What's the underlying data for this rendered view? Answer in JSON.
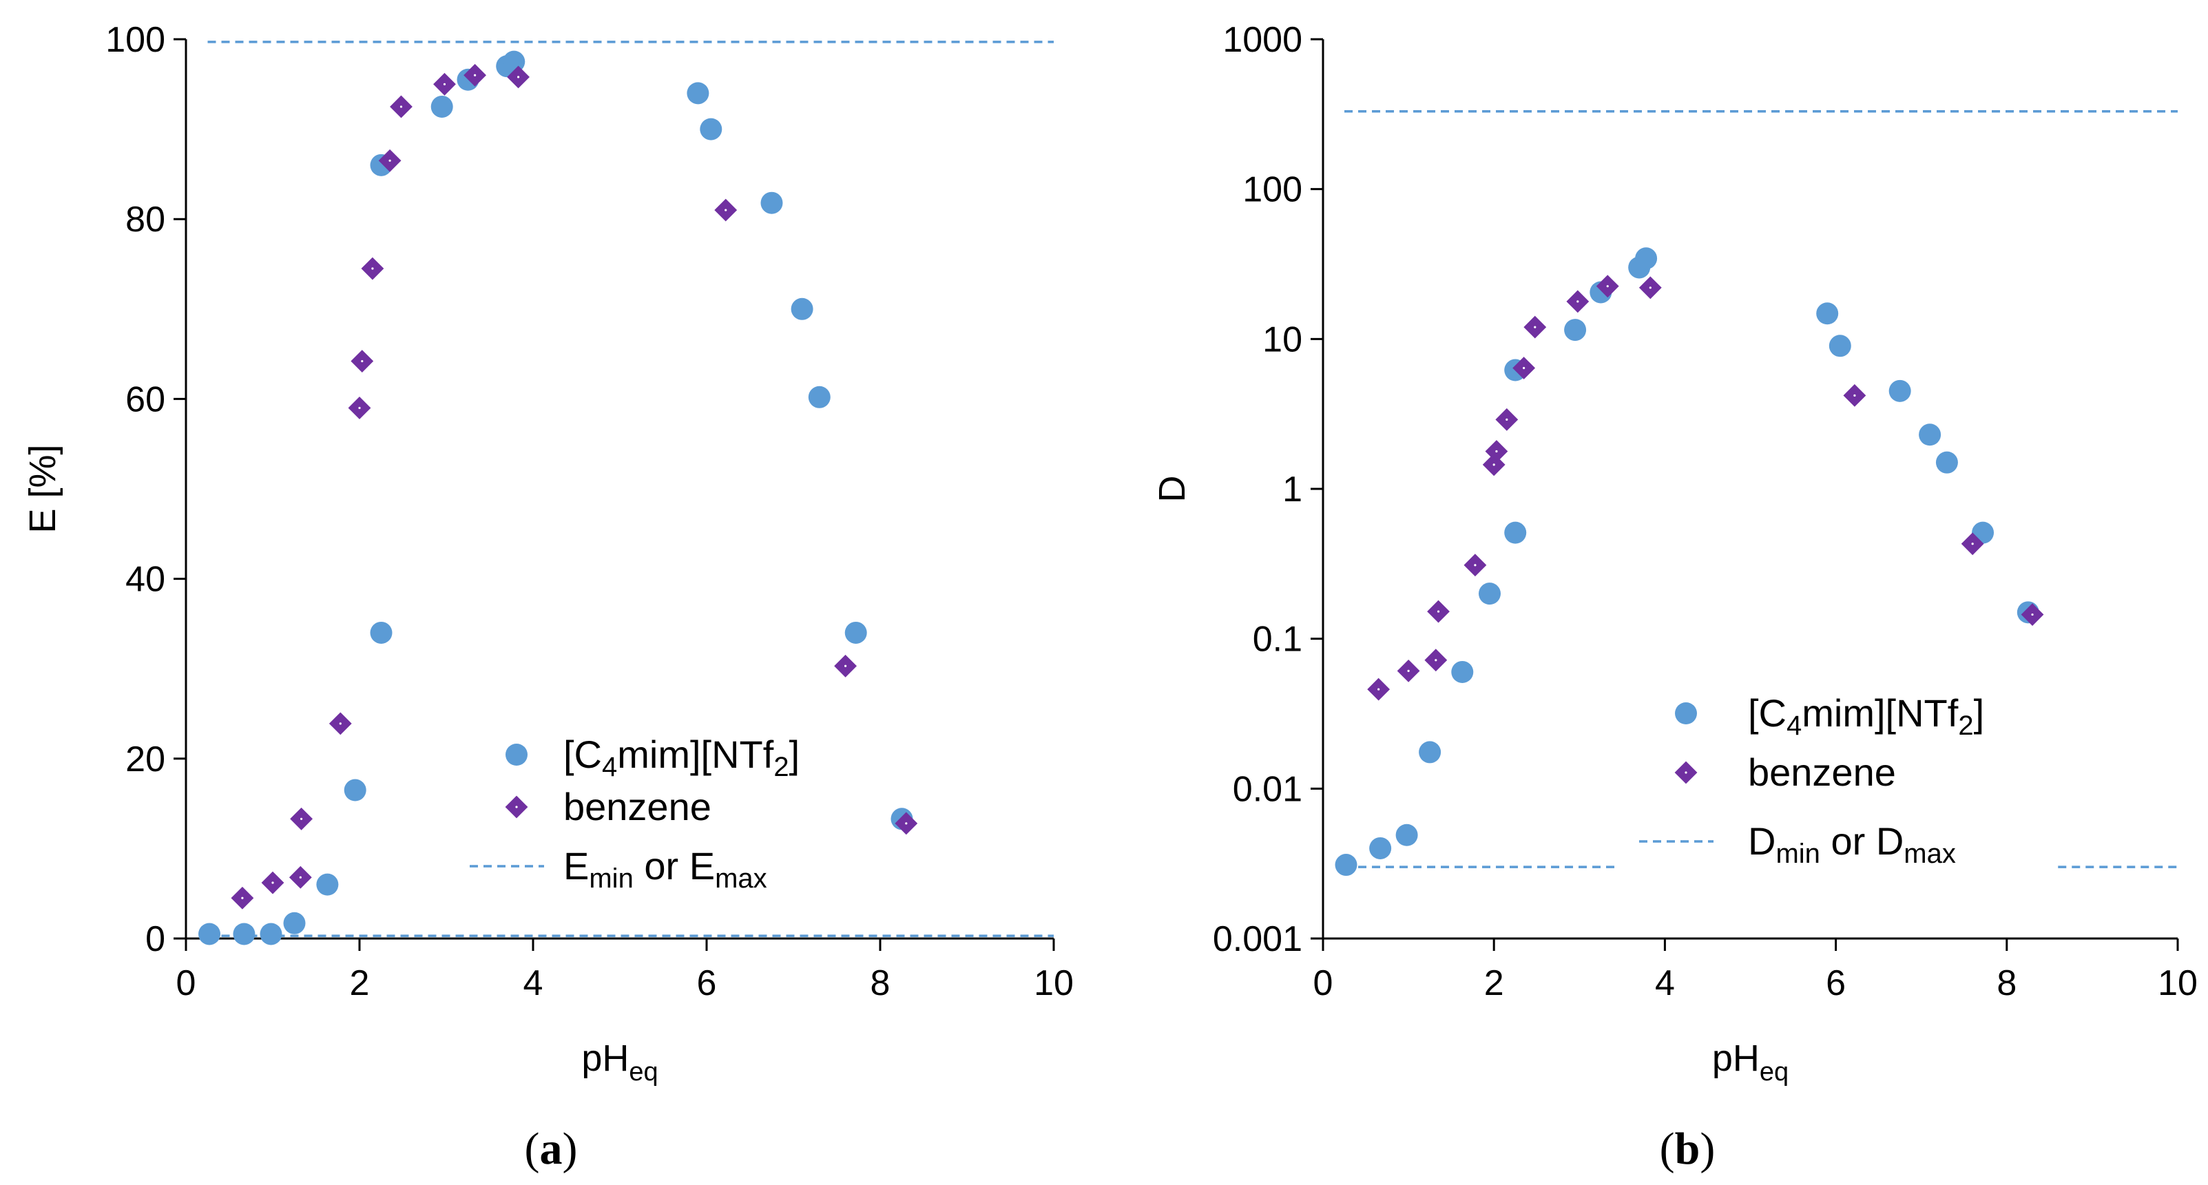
{
  "colors": {
    "ionic_liquid": "#5B9BD5",
    "benzene": "#7030A0",
    "limit_line": "#5B9BD5",
    "axis": "#000000"
  },
  "chart_data": [
    {
      "panel": "a",
      "type": "scatter",
      "panel_label": {
        "open": "(",
        "letter": "a",
        "close": ")"
      },
      "xlabel": {
        "main": "pH",
        "sub": "eq"
      },
      "ylabel": "E [%]",
      "xlim": [
        0,
        10
      ],
      "ylim": [
        0,
        100
      ],
      "yscale": "linear",
      "xticks": [
        0,
        2,
        4,
        6,
        8,
        10
      ],
      "yticks": [
        0,
        20,
        40,
        60,
        80,
        100
      ],
      "ytick_labels": [
        "0",
        "20",
        "40",
        "60",
        "80",
        "100"
      ],
      "legend": [
        {
          "key": "ionic_liquid",
          "marker": "circle",
          "label": [
            "[C",
            "4",
            "mim][NTf",
            "2",
            "]"
          ]
        },
        {
          "key": "benzene",
          "marker": "diamond",
          "label": [
            "benzene"
          ]
        },
        {
          "key": "limit",
          "marker": "dash",
          "label": [
            "E",
            "min",
            " or E",
            "max"
          ]
        }
      ],
      "series": [
        {
          "name": "[C4mim][NTf2]",
          "key": "ionic_liquid",
          "marker": "circle",
          "points": [
            [
              0.27,
              0.5
            ],
            [
              0.67,
              0.5
            ],
            [
              0.98,
              0.5
            ],
            [
              1.25,
              1.7
            ],
            [
              1.63,
              6.0
            ],
            [
              1.95,
              16.5
            ],
            [
              2.25,
              34.0
            ],
            [
              2.25,
              86.0
            ],
            [
              2.95,
              92.5
            ],
            [
              3.25,
              95.5
            ],
            [
              3.7,
              97.0
            ],
            [
              3.78,
              97.5
            ],
            [
              5.9,
              94.0
            ],
            [
              6.05,
              90.0
            ],
            [
              6.75,
              81.8
            ],
            [
              7.1,
              70.0
            ],
            [
              7.3,
              60.2
            ],
            [
              7.72,
              34.0
            ],
            [
              8.25,
              13.3
            ]
          ]
        },
        {
          "name": "benzene",
          "key": "benzene",
          "marker": "diamond",
          "points": [
            [
              0.65,
              4.5
            ],
            [
              1.0,
              6.2
            ],
            [
              1.32,
              6.8
            ],
            [
              1.33,
              13.3
            ],
            [
              1.78,
              23.9
            ],
            [
              2.0,
              59.0
            ],
            [
              2.03,
              64.2
            ],
            [
              2.15,
              74.5
            ],
            [
              2.35,
              86.5
            ],
            [
              2.48,
              92.5
            ],
            [
              2.98,
              95.0
            ],
            [
              3.33,
              96.0
            ],
            [
              3.83,
              95.8
            ],
            [
              6.22,
              81.0
            ],
            [
              7.6,
              30.3
            ],
            [
              8.3,
              12.8
            ]
          ]
        }
      ],
      "limit_lines": [
        {
          "y": 99.7,
          "x_segments": [
            [
              0.25,
              10
            ]
          ]
        },
        {
          "y": 0.3,
          "x_segments": [
            [
              0.25,
              10
            ]
          ]
        }
      ]
    },
    {
      "panel": "b",
      "type": "scatter",
      "panel_label": {
        "open": "(",
        "letter": "b",
        "close": ")"
      },
      "xlabel": {
        "main": "pH",
        "sub": "eq"
      },
      "ylabel": "D",
      "xlim": [
        0,
        10
      ],
      "ylim": [
        0.001,
        1000
      ],
      "yscale": "log",
      "xticks": [
        0,
        2,
        4,
        6,
        8,
        10
      ],
      "yticks": [
        0.001,
        0.01,
        0.1,
        1,
        10,
        100,
        1000
      ],
      "ytick_labels": [
        "0.001",
        "0.01",
        "0.1",
        "1",
        "10",
        "100",
        "1000"
      ],
      "legend": [
        {
          "key": "ionic_liquid",
          "marker": "circle",
          "label": [
            "[C",
            "4",
            "mim][NTf",
            "2",
            "]"
          ]
        },
        {
          "key": "benzene",
          "marker": "diamond",
          "label": [
            "benzene"
          ]
        },
        {
          "key": "limit",
          "marker": "dash",
          "label": [
            "D",
            "min",
            " or D",
            "max"
          ]
        }
      ],
      "series": [
        {
          "name": "[C4mim][NTf2]",
          "key": "ionic_liquid",
          "marker": "circle",
          "points": [
            [
              0.27,
              0.0031
            ],
            [
              0.67,
              0.004
            ],
            [
              0.98,
              0.0049
            ],
            [
              1.25,
              0.0175
            ],
            [
              1.63,
              0.06
            ],
            [
              1.95,
              0.2
            ],
            [
              2.25,
              0.51
            ],
            [
              2.25,
              6.2
            ],
            [
              2.95,
              11.5
            ],
            [
              3.25,
              20.5
            ],
            [
              3.7,
              30.0
            ],
            [
              3.78,
              34.5
            ],
            [
              5.9,
              14.8
            ],
            [
              6.05,
              9.0
            ],
            [
              6.75,
              4.5
            ],
            [
              7.1,
              2.3
            ],
            [
              7.3,
              1.5
            ],
            [
              7.72,
              0.51
            ],
            [
              8.25,
              0.15
            ]
          ]
        },
        {
          "name": "benzene",
          "key": "benzene",
          "marker": "diamond",
          "points": [
            [
              0.65,
              0.046
            ],
            [
              1.0,
              0.061
            ],
            [
              1.32,
              0.072
            ],
            [
              1.35,
              0.152
            ],
            [
              1.78,
              0.31
            ],
            [
              2.0,
              1.45
            ],
            [
              2.03,
              1.78
            ],
            [
              2.15,
              2.9
            ],
            [
              2.35,
              6.4
            ],
            [
              2.48,
              12.0
            ],
            [
              2.98,
              17.8
            ],
            [
              3.33,
              22.5
            ],
            [
              3.83,
              22.0
            ],
            [
              6.22,
              4.2
            ],
            [
              7.6,
              0.43
            ],
            [
              8.3,
              0.145
            ]
          ]
        }
      ],
      "limit_lines": [
        {
          "y": 330,
          "x_segments": [
            [
              0.25,
              10
            ]
          ]
        },
        {
          "y": 0.003,
          "x_segments": [
            [
              0.25,
              3.45
            ],
            [
              8.6,
              10
            ]
          ]
        }
      ]
    }
  ]
}
